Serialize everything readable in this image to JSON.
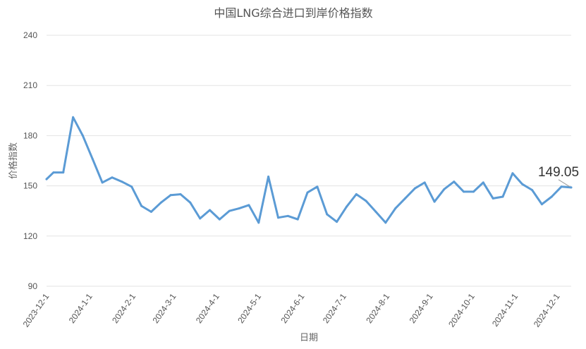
{
  "chart_data": {
    "type": "line",
    "title": "中国LNG综合进口到岸价格指数",
    "xlabel": "日期",
    "ylabel": "价格指数",
    "ylim": [
      90,
      240
    ],
    "yticks": [
      90,
      120,
      150,
      180,
      210,
      240
    ],
    "grid": true,
    "series_color": "#5b9bd5",
    "x_tick_labels": [
      "2023-12-1",
      "2024-1-1",
      "2024-2-1",
      "2024-3-1",
      "2024-4-1",
      "2024-5-1",
      "2024-6-1",
      "2024-7-1",
      "2024-8-1",
      "2024-9-1",
      "2024-10-1",
      "2024-11-1",
      "2024-12-1"
    ],
    "series": [
      {
        "x": [
          "2023-12-1",
          "2023-12-6",
          "2023-12-13",
          "2023-12-20",
          "2023-12-27",
          "2024-1-3",
          "2024-1-10",
          "2024-1-17",
          "2024-1-24",
          "2024-1-31",
          "2024-2-7",
          "2024-2-14",
          "2024-2-21",
          "2024-2-28",
          "2024-3-6",
          "2024-3-13",
          "2024-3-20",
          "2024-3-27",
          "2024-4-3",
          "2024-4-10",
          "2024-4-17",
          "2024-4-24",
          "2024-5-1",
          "2024-5-8",
          "2024-5-15",
          "2024-5-22",
          "2024-5-29",
          "2024-6-5",
          "2024-6-12",
          "2024-6-19",
          "2024-6-26",
          "2024-7-3",
          "2024-7-10",
          "2024-7-17",
          "2024-7-24",
          "2024-7-31",
          "2024-8-7",
          "2024-8-14",
          "2024-8-21",
          "2024-8-28",
          "2024-9-4",
          "2024-9-11",
          "2024-9-18",
          "2024-9-25",
          "2024-10-2",
          "2024-10-9",
          "2024-10-16",
          "2024-10-23",
          "2024-10-30",
          "2024-11-6",
          "2024-11-13",
          "2024-11-20",
          "2024-11-27",
          "2024-12-4",
          "2024-12-11"
        ],
        "values": [
          154,
          158,
          158,
          191,
          180,
          166,
          152,
          155,
          152.5,
          149.5,
          138,
          134.5,
          140,
          144.5,
          145,
          140,
          130.5,
          135.5,
          130,
          135,
          136.5,
          138.5,
          128,
          155.5,
          131,
          132,
          130,
          146,
          149.5,
          133,
          128.5,
          137.5,
          145,
          141,
          134.5,
          128,
          136.5,
          142.5,
          148.5,
          152,
          140.5,
          148,
          152.5,
          146.5,
          146.5,
          152,
          142.5,
          143.5,
          157.5,
          151,
          147.5,
          139,
          143.5,
          149.5,
          149.05
        ]
      }
    ],
    "last_value_label": "149.05"
  }
}
